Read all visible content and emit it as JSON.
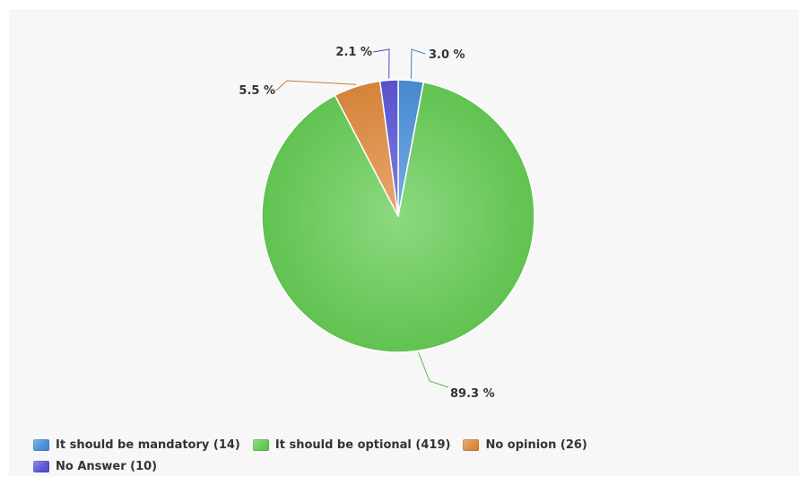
{
  "chart_data": {
    "type": "pie",
    "title": "",
    "start_angle_deg": 0,
    "series": [
      {
        "name": "It should be mandatory (14)",
        "value": 14,
        "percent_label": "3.0 %",
        "color": "#4a90d9"
      },
      {
        "name": "It should be optional (419)",
        "value": 419,
        "percent_label": "89.3 %",
        "color": "#66cc55"
      },
      {
        "name": "No opinion (26)",
        "value": 26,
        "percent_label": "5.5 %",
        "color": "#e08a3c"
      },
      {
        "name": "No Answer (10)",
        "value": 10,
        "percent_label": "2.1 %",
        "color": "#5a55d6"
      }
    ],
    "legend_position": "bottom-left",
    "legend_rows": [
      [
        0,
        1,
        2
      ],
      [
        3
      ]
    ],
    "data_labels": true
  }
}
